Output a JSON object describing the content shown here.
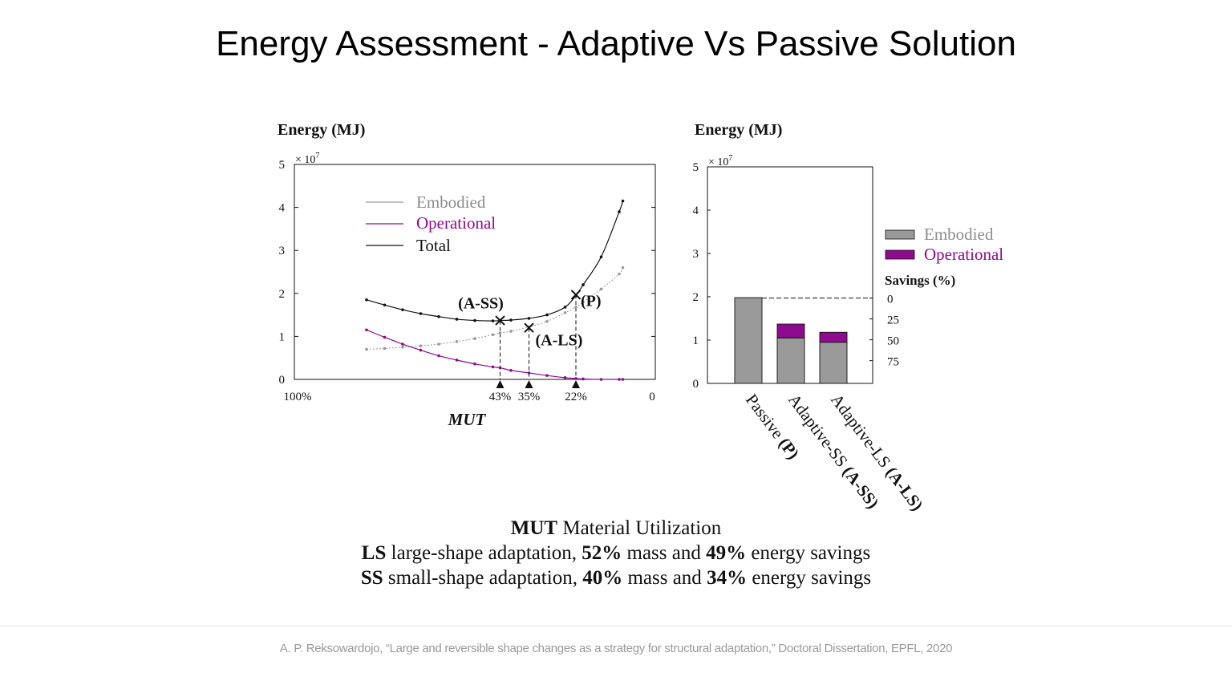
{
  "slide": {
    "title": "Energy Assessment - Adaptive Vs Passive Solution"
  },
  "caption": {
    "line1": {
      "b1": "MUT",
      "t1": " Material Utilization"
    },
    "line2": {
      "b1": "LS",
      "t1": " large-shape adaptation, ",
      "b2": "52%",
      "t2": " mass and ",
      "b3": "49%",
      "t3": " energy savings"
    },
    "line3": {
      "b1": "SS",
      "t1": " small-shape adaptation, ",
      "b2": "40%",
      "t2": " mass and ",
      "b3": "34%",
      "t3": " energy savings"
    }
  },
  "citation": "A. P. Reksowardojo, “Large and reversible shape changes as a strategy for structural adaptation,” Doctoral Dissertation, EPFL, 2020",
  "colors": {
    "embodied": "#9a9a9a",
    "operational": "#8e0a8e",
    "total": "#111111"
  },
  "chart_data": [
    {
      "type": "line",
      "ylabel": "Energy (MJ)",
      "y_multiplier": "× 10",
      "y_multiplier_exp": "7",
      "xlabel": "MUT",
      "ylim": [
        0,
        5
      ],
      "yticks": [
        "0",
        "1",
        "2",
        "3",
        "4",
        "5"
      ],
      "xlim": [
        100,
        0
      ],
      "xticks": [
        {
          "x": 100,
          "label": "100%"
        },
        {
          "x": 43,
          "label": "43%"
        },
        {
          "x": 35,
          "label": "35%"
        },
        {
          "x": 22,
          "label": "22%"
        },
        {
          "x": 0,
          "label": "0"
        }
      ],
      "legend": [
        "Embodied",
        "Operational",
        "Total"
      ],
      "legend_position": "top-left",
      "x": [
        80,
        75,
        70,
        65,
        60,
        55,
        50,
        45,
        43,
        40,
        35,
        30,
        25,
        22,
        20,
        15,
        10,
        9
      ],
      "series": [
        {
          "name": "Embodied",
          "values": [
            0.7,
            0.72,
            0.75,
            0.78,
            0.82,
            0.88,
            0.95,
            1.04,
            1.08,
            1.12,
            1.22,
            1.35,
            1.55,
            1.68,
            1.8,
            2.1,
            2.45,
            2.6
          ]
        },
        {
          "name": "Operational",
          "values": [
            1.15,
            0.98,
            0.82,
            0.68,
            0.55,
            0.45,
            0.36,
            0.29,
            0.27,
            0.21,
            0.15,
            0.09,
            0.04,
            0.02,
            0.01,
            0.0,
            0.0,
            0.0
          ]
        },
        {
          "name": "Total",
          "values": [
            1.85,
            1.73,
            1.62,
            1.53,
            1.46,
            1.4,
            1.37,
            1.36,
            1.37,
            1.38,
            1.42,
            1.5,
            1.68,
            1.95,
            2.2,
            2.85,
            3.9,
            4.15
          ]
        }
      ],
      "markers": [
        {
          "label": "(A-SS)",
          "x": 43,
          "y": 1.37
        },
        {
          "label": "(A-LS)",
          "x": 35,
          "y": 1.2
        },
        {
          "label": "(P)",
          "x": 22,
          "y": 1.97
        }
      ]
    },
    {
      "type": "bar",
      "stacked": true,
      "ylabel": "Energy (MJ)",
      "y_multiplier": "× 10",
      "y_multiplier_exp": "7",
      "ylim": [
        0,
        5
      ],
      "yticks": [
        "0",
        "1",
        "2",
        "3",
        "4",
        "5"
      ],
      "categories": [
        {
          "name": "Passive ",
          "code": "(P)"
        },
        {
          "name": "Adaptive-SS ",
          "code": "(A-SS)"
        },
        {
          "name": "Adaptive-LS ",
          "code": "(A-LS)"
        }
      ],
      "series": [
        {
          "name": "Embodied",
          "values": [
            1.98,
            1.05,
            0.95
          ]
        },
        {
          "name": "Operational",
          "values": [
            0.0,
            0.32,
            0.23
          ]
        }
      ],
      "legend_position": "right",
      "savings_title": "Savings (%)",
      "savings_reference": 1.97,
      "savings_ticks": [
        "0",
        "25",
        "50",
        "75"
      ]
    }
  ]
}
